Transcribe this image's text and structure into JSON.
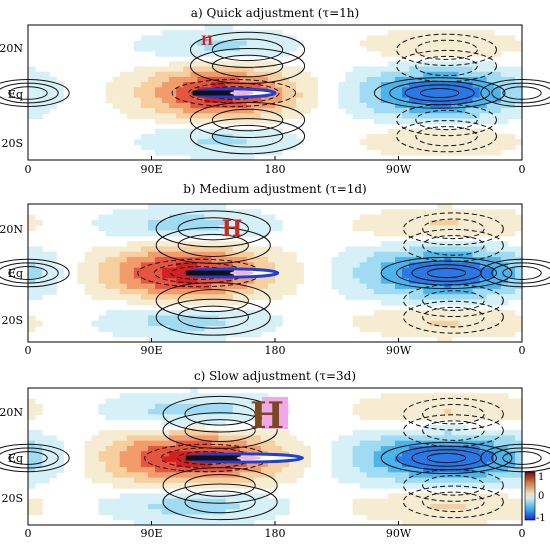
{
  "chart_data": [
    {
      "type": "heatmap",
      "title": "a) Quick adjustment (τ=1h)",
      "x_ticks": [
        "0",
        "90E",
        "180",
        "90W",
        "0"
      ],
      "y_ticks": [
        "20N",
        "Eq",
        "20S"
      ],
      "high_label": "H",
      "jet": {
        "lon_start": 120,
        "lon_core": 150,
        "lon_end": 180
      },
      "field": {
        "warm_center_lon": 140,
        "warm_amp": 1.0,
        "cool_center_lon": 300,
        "cool_amp": -0.9,
        "offeq_amp": 0.45,
        "width_lon": 40
      }
    },
    {
      "type": "heatmap",
      "title": "b) Medium adjustment (τ=1d)",
      "x_ticks": [
        "0",
        "90E",
        "180",
        "90W",
        "0"
      ],
      "y_ticks": [
        "20N",
        "Eq",
        "20S"
      ],
      "high_label": "H",
      "jet": {
        "lon_start": 115,
        "lon_core": 150,
        "lon_end": 182
      },
      "field": {
        "warm_center_lon": 115,
        "warm_amp": 1.0,
        "cool_center_lon": 305,
        "cool_amp": -0.9,
        "offeq_amp": 0.5,
        "width_lon": 45
      }
    },
    {
      "type": "heatmap",
      "title": "c) Slow adjustment (τ=3d)",
      "x_ticks": [
        "0",
        "90E",
        "180",
        "90W",
        "0"
      ],
      "y_ticks": [
        "20N",
        "Eq",
        "20S"
      ],
      "high_label": "H",
      "jet": {
        "lon_start": 115,
        "lon_core": 155,
        "lon_end": 200
      },
      "field": {
        "warm_center_lon": 120,
        "warm_amp": 1.0,
        "cool_center_lon": 305,
        "cool_amp": -0.9,
        "offeq_amp": 0.5,
        "width_lon": 50
      }
    }
  ],
  "colorbar": {
    "max_label": "1",
    "mid_label": "0",
    "min_label": "-1"
  }
}
